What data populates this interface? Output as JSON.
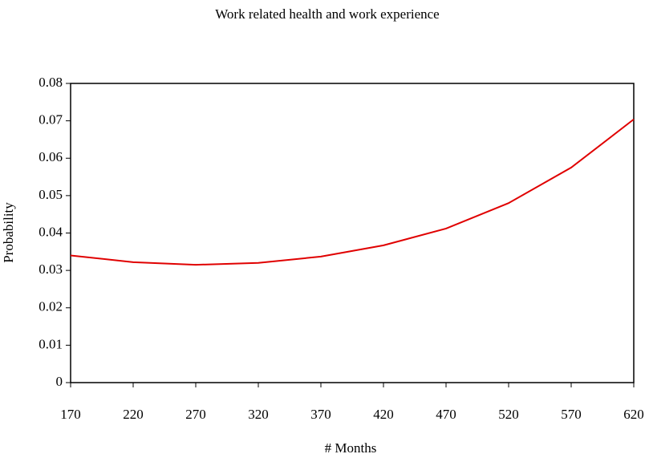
{
  "chart_data": {
    "type": "line",
    "title": "Work related health and work experience",
    "x_label": "# Months",
    "y_label": "Probability",
    "x": [
      170,
      220,
      270,
      320,
      370,
      420,
      470,
      520,
      570,
      620
    ],
    "series": [
      {
        "name": "Probability",
        "color": "#e00000",
        "values": [
          0.034,
          0.0322,
          0.0315,
          0.032,
          0.0337,
          0.0367,
          0.0412,
          0.048,
          0.0575,
          0.0704
        ]
      }
    ],
    "xlim": [
      170,
      620
    ],
    "xticks": [
      170,
      220,
      270,
      320,
      370,
      420,
      470,
      520,
      570,
      620
    ],
    "ylim": [
      0,
      0.08
    ],
    "yticks": [
      0,
      0.01,
      0.02,
      0.03,
      0.04,
      0.05,
      0.06,
      0.07,
      0.08
    ]
  }
}
